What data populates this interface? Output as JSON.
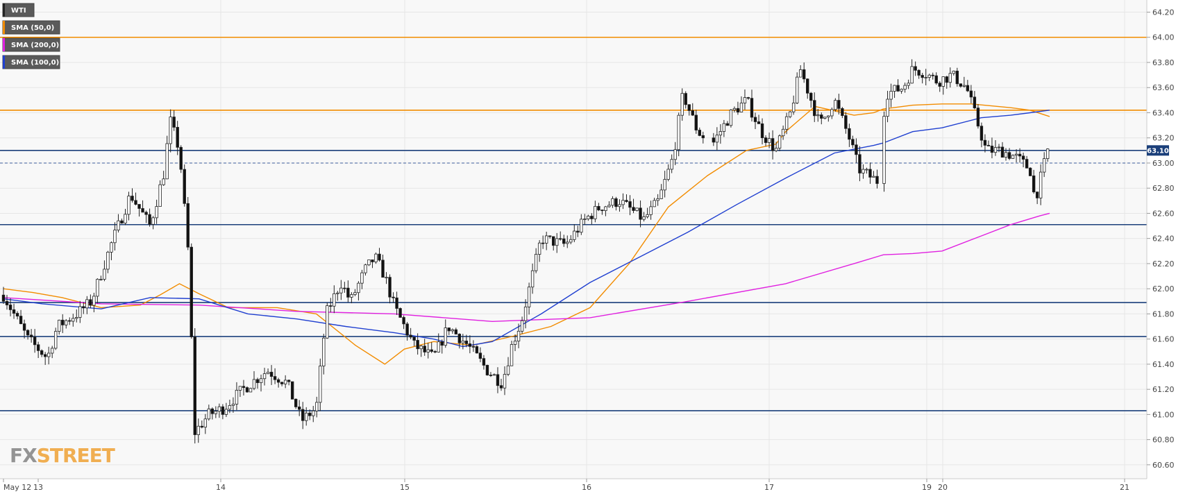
{
  "chart_data": {
    "type": "candlestick",
    "symbol": "WTI",
    "y_range": [
      60.5,
      64.28
    ],
    "y_ticks": [
      "64.20",
      "64.00",
      "63.80",
      "63.60",
      "63.40",
      "63.20",
      "63.00",
      "62.80",
      "62.60",
      "62.40",
      "62.20",
      "62.00",
      "61.80",
      "61.60",
      "61.40",
      "61.20",
      "61.00",
      "60.80",
      "60.60"
    ],
    "x_ticks": [
      "May 12",
      "13",
      "14",
      "15",
      "16",
      "17",
      "19",
      "20",
      "21"
    ],
    "last_price": "63.10",
    "dashed_level": 63.0,
    "horizontal_levels": [
      {
        "value": 64.0,
        "color": "#f28c00"
      },
      {
        "value": 63.42,
        "color": "#f28c00"
      },
      {
        "value": 63.1,
        "color": "#1b3f7a"
      },
      {
        "value": 62.51,
        "color": "#1b3f7a"
      },
      {
        "value": 61.89,
        "color": "#1b3f7a"
      },
      {
        "value": 61.62,
        "color": "#1b3f7a"
      },
      {
        "value": 61.03,
        "color": "#1b3f7a"
      }
    ],
    "legend": [
      {
        "label": "WTI",
        "color": "#222222"
      },
      {
        "label": "SMA (50,0)",
        "color": "#f28c00"
      },
      {
        "label": "SMA (200,0)",
        "color": "#e020e0"
      },
      {
        "label": "SMA (100,0)",
        "color": "#1f3fd0"
      }
    ],
    "series": [
      {
        "name": "SMA (50,0)",
        "color": "#f28c00",
        "x": [
          0,
          0.3,
          0.6,
          1.0,
          1.4,
          1.6,
          1.8,
          2.0,
          2.3,
          2.8,
          3.2,
          3.6,
          3.9,
          4.1,
          4.4,
          4.8,
          5.2,
          5.6,
          6.0,
          6.4,
          6.8,
          7.2,
          7.6,
          7.9,
          8.0,
          8.3,
          8.7,
          8.9,
          9.0,
          9.3,
          9.6,
          9.9,
          10.3,
          10.5,
          10.7
        ],
        "y": [
          62.0,
          61.97,
          61.93,
          61.85,
          61.87,
          61.95,
          62.04,
          61.96,
          61.85,
          61.85,
          61.8,
          61.55,
          61.4,
          61.52,
          61.58,
          61.55,
          61.62,
          61.7,
          61.85,
          62.2,
          62.65,
          62.9,
          63.1,
          63.15,
          63.25,
          63.45,
          63.38,
          63.4,
          63.43,
          63.46,
          63.47,
          63.47,
          63.44,
          63.42,
          63.37
        ]
      },
      {
        "name": "SMA (200,0)",
        "color": "#e020e0",
        "x": [
          0,
          1,
          2,
          3,
          4,
          5,
          6,
          7,
          8,
          8.7,
          9,
          9.3,
          9.6,
          10,
          10.3,
          10.6,
          10.7
        ],
        "y": [
          61.93,
          61.88,
          61.87,
          61.82,
          61.8,
          61.74,
          61.77,
          61.9,
          62.04,
          62.2,
          62.27,
          62.28,
          62.3,
          62.42,
          62.51,
          62.58,
          62.6
        ]
      },
      {
        "name": "SMA (100,0)",
        "color": "#1f3fd0",
        "x": [
          0,
          0.4,
          1.0,
          1.5,
          2.0,
          2.5,
          3.0,
          3.5,
          4.0,
          4.4,
          4.7,
          5.0,
          5.5,
          6.0,
          6.5,
          7.0,
          7.5,
          8.0,
          8.5,
          8.9,
          9.0,
          9.3,
          9.6,
          10.0,
          10.3,
          10.5,
          10.7
        ],
        "y": [
          61.92,
          61.88,
          61.84,
          61.93,
          61.92,
          61.8,
          61.76,
          61.7,
          61.65,
          61.6,
          61.54,
          61.58,
          61.8,
          62.05,
          62.25,
          62.45,
          62.67,
          62.88,
          63.08,
          63.14,
          63.16,
          63.25,
          63.28,
          63.36,
          63.38,
          63.4,
          63.42
        ]
      }
    ],
    "candle_anchors": {
      "x": [
        0,
        0.25,
        0.45,
        0.55,
        0.75,
        0.9,
        1.1,
        1.3,
        1.5,
        1.65,
        1.7,
        1.8,
        1.9,
        1.95,
        2.1,
        2.25,
        2.45,
        2.7,
        2.9,
        3.05,
        3.2,
        3.3,
        3.45,
        3.55,
        3.7,
        3.8,
        3.9,
        4.0,
        4.2,
        4.4,
        4.55,
        4.75,
        4.95,
        5.1,
        5.2,
        5.3,
        5.5,
        5.75,
        5.95,
        6.1,
        6.3,
        6.55,
        6.7,
        6.85,
        6.95,
        7.1,
        7.25,
        7.45,
        7.6,
        7.75,
        7.9,
        8.05,
        8.15,
        8.35,
        8.5,
        8.65,
        8.75,
        8.85,
        8.95,
        9.02,
        9.2,
        9.3,
        9.42,
        9.55,
        9.7,
        9.85,
        10.05,
        10.2,
        10.35,
        10.5,
        10.55,
        10.68
      ],
      "y": [
        61.95,
        61.6,
        61.45,
        61.7,
        61.8,
        61.9,
        62.35,
        62.75,
        62.5,
        62.95,
        63.35,
        63.1,
        62.2,
        60.85,
        61.0,
        61.05,
        61.2,
        61.35,
        61.25,
        60.95,
        61.05,
        61.8,
        62.05,
        61.9,
        62.15,
        62.25,
        62.1,
        61.85,
        61.55,
        61.45,
        61.7,
        61.55,
        61.35,
        61.25,
        61.55,
        61.75,
        62.4,
        62.35,
        62.55,
        62.65,
        62.7,
        62.55,
        62.7,
        63.05,
        63.55,
        63.25,
        63.15,
        63.4,
        63.5,
        63.25,
        63.1,
        63.4,
        63.75,
        63.3,
        63.5,
        63.2,
        62.95,
        62.9,
        62.85,
        63.55,
        63.6,
        63.75,
        63.72,
        63.65,
        63.7,
        63.6,
        63.1,
        63.1,
        63.05,
        62.95,
        62.7,
        63.1
      ]
    }
  },
  "watermark": {
    "part1": "FX",
    "part2": "STREET"
  }
}
